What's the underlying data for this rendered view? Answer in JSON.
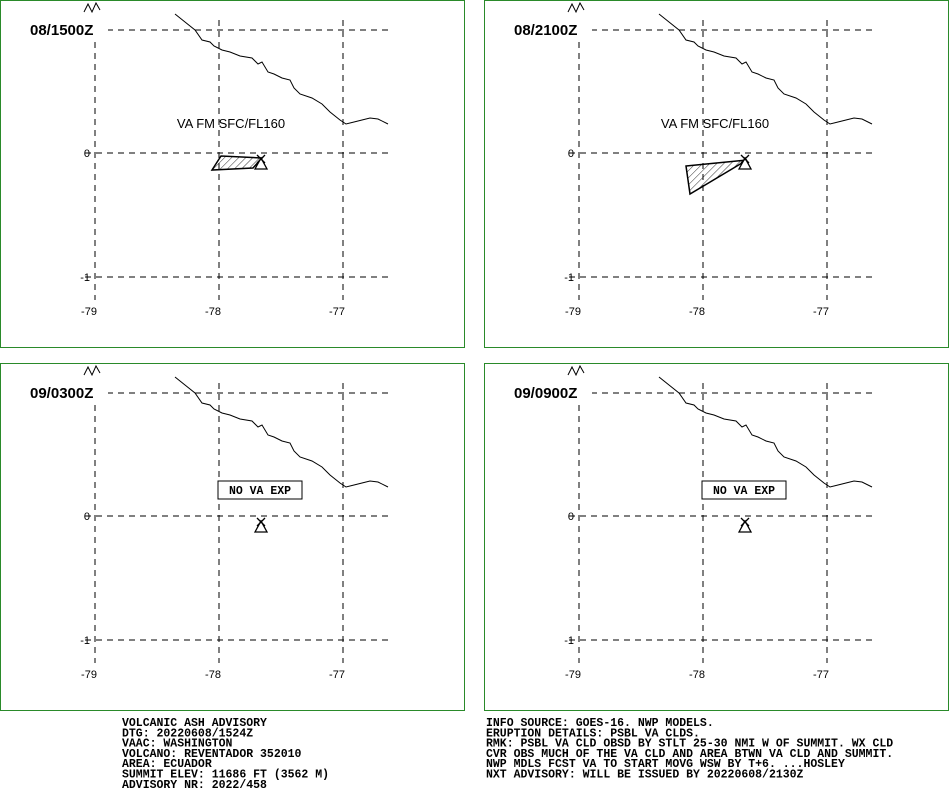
{
  "panels": [
    {
      "time": "08/1500Z",
      "annotation": "VA FM SFC/FL160",
      "boxed": false
    },
    {
      "time": "08/2100Z",
      "annotation": "VA FM SFC/FL160",
      "boxed": false
    },
    {
      "time": "09/0300Z",
      "annotation": "NO VA EXP",
      "boxed": true
    },
    {
      "time": "09/0900Z",
      "annotation": "NO VA EXP",
      "boxed": true
    }
  ],
  "lat_labels": [
    "0",
    "-1"
  ],
  "lon_labels": [
    "-79",
    "-78",
    "-77"
  ],
  "advisory_left": [
    "VOLCANIC ASH ADVISORY",
    "DTG: 20220608/1524Z",
    "VAAC: WASHINGTON",
    "VOLCANO: REVENTADOR 352010",
    "AREA: ECUADOR",
    "SUMMIT ELEV: 11686 FT (3562 M)",
    "ADVISORY NR: 2022/458"
  ],
  "advisory_right": [
    "INFO SOURCE: GOES-16. NWP MODELS.",
    "ERUPTION DETAILS: PSBL VA CLDS.",
    "RMK: PSBL VA CLD OBSD BY STLT 25-30 NMI W OF SUMMIT. WX CLD",
    "CVR OBS MUCH OF THE VA CLD AND AREA BTWN VA CLD AND SUMMIT.",
    "NWP MDLS FCST VA TO START MOVG WSW BY T+6. ...HOSLEY",
    "NXT ADVISORY: WILL BE ISSUED BY 20220608/2130Z"
  ]
}
